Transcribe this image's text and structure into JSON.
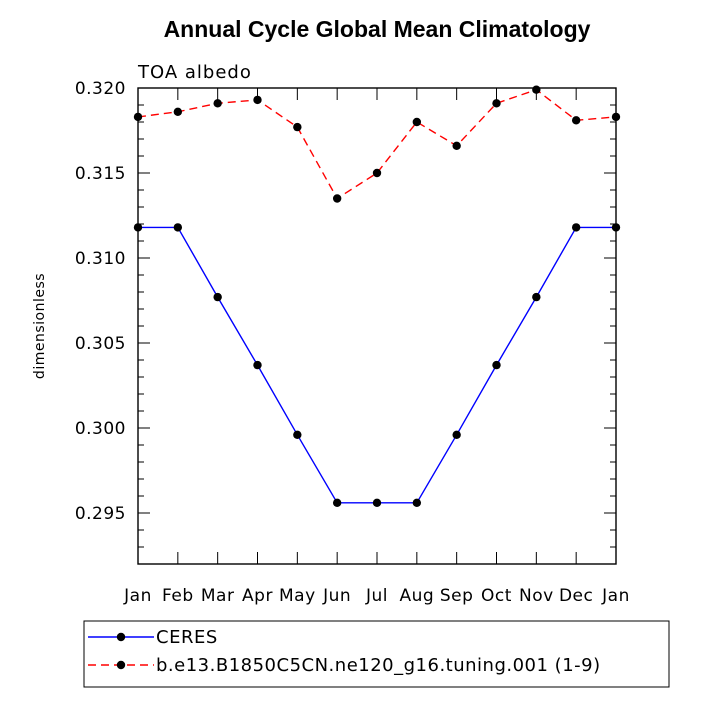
{
  "chart_data": {
    "type": "line",
    "title": "Annual Cycle Global Mean Climatology",
    "subtitle": "TOA albedo",
    "xlabel": "",
    "ylabel": "dimensionless",
    "categories": [
      "Jan",
      "Feb",
      "Mar",
      "Apr",
      "May",
      "Jun",
      "Jul",
      "Aug",
      "Sep",
      "Oct",
      "Nov",
      "Dec",
      "Jan"
    ],
    "ylim": [
      0.292,
      0.32
    ],
    "yticks": [
      "0.295",
      "0.300",
      "0.305",
      "0.310",
      "0.315",
      "0.320"
    ],
    "grid": false,
    "legend_position": "bottom-left",
    "series": [
      {
        "name": "CERES",
        "color": "#0000ff",
        "dash": "solid",
        "values": [
          0.3118,
          0.3118,
          0.3077,
          0.3037,
          0.2996,
          0.2956,
          0.2956,
          0.2956,
          0.2996,
          0.3037,
          0.3077,
          0.3118,
          0.3118
        ]
      },
      {
        "name": "b.e13.B1850C5CN.ne120_g16.tuning.001 (1-9)",
        "color": "#ff0000",
        "dash": "dashed",
        "values": [
          0.3183,
          0.3186,
          0.3191,
          0.3193,
          0.3177,
          0.3135,
          0.315,
          0.318,
          0.3166,
          0.3191,
          0.3199,
          0.3181,
          0.3183
        ]
      }
    ]
  }
}
